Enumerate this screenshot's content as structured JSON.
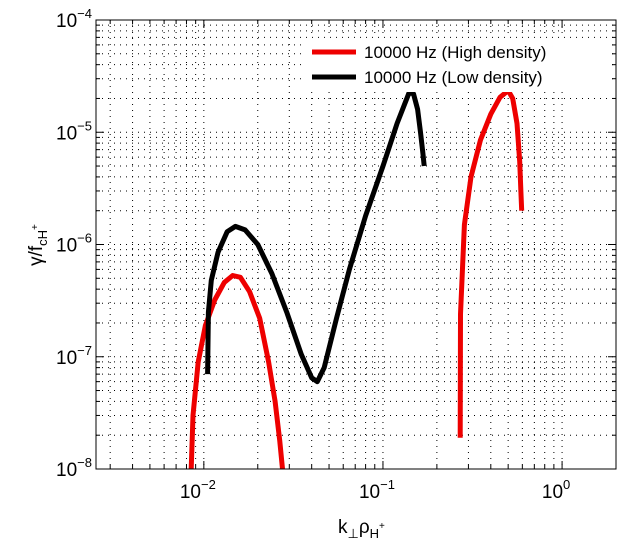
{
  "chart_data": {
    "type": "line",
    "title": "",
    "xscale": "log",
    "yscale": "log",
    "xlim": [
      0.0025,
      2
    ],
    "ylim": [
      1e-08,
      0.0001
    ],
    "grid": true,
    "legend_position": "top-right",
    "xlabel": {
      "main": "k",
      "sub1": "⊥",
      "mid": "ρ",
      "sub2": "H",
      "sup": "+"
    },
    "ylabel": {
      "main": "γ/f",
      "sub": "cH",
      "sup": "+"
    },
    "xticks": [
      {
        "value": 0.01,
        "base": "10",
        "exp": "−2"
      },
      {
        "value": 0.1,
        "base": "10",
        "exp": "−1"
      },
      {
        "value": 1,
        "base": "10",
        "exp": "0"
      }
    ],
    "yticks": [
      {
        "value": 1e-08,
        "base": "10",
        "exp": "−8"
      },
      {
        "value": 1e-07,
        "base": "10",
        "exp": "−7"
      },
      {
        "value": 1e-06,
        "base": "10",
        "exp": "−6"
      },
      {
        "value": 1e-05,
        "base": "10",
        "exp": "−5"
      },
      {
        "value": 0.0001,
        "base": "10",
        "exp": "−4"
      }
    ],
    "series": [
      {
        "name": "10000 Hz (High density)",
        "color": "#ee0000",
        "segments": [
          [
            [
              0.0085,
              1e-08
            ],
            [
              0.0087,
              3e-08
            ],
            [
              0.0093,
              9e-08
            ],
            [
              0.0102,
              1.9e-07
            ],
            [
              0.0115,
              3.2e-07
            ],
            [
              0.013,
              4.6e-07
            ],
            [
              0.0145,
              5.3e-07
            ],
            [
              0.016,
              5.1e-07
            ],
            [
              0.018,
              3.8e-07
            ],
            [
              0.0205,
              2.2e-07
            ],
            [
              0.023,
              9e-08
            ],
            [
              0.025,
              4e-08
            ],
            [
              0.0265,
              1.8e-08
            ],
            [
              0.0275,
              1e-08
            ]
          ],
          [
            [
              0.27,
              1.9e-08
            ],
            [
              0.271,
              2.4e-07
            ],
            [
              0.285,
              1.5e-06
            ],
            [
              0.31,
              4e-06
            ],
            [
              0.35,
              8.5e-06
            ],
            [
              0.4,
              1.45e-05
            ],
            [
              0.45,
              2.05e-05
            ],
            [
              0.5,
              2.35e-05
            ],
            [
              0.53,
              2e-05
            ],
            [
              0.56,
              1.2e-05
            ],
            [
              0.58,
              5.5e-06
            ],
            [
              0.59,
              2.8e-06
            ],
            [
              0.595,
              2e-06
            ]
          ]
        ]
      },
      {
        "name": "10000 Hz (Low density)",
        "color": "#000000",
        "segments": [
          [
            [
              0.0105,
              7e-08
            ],
            [
              0.0106,
              2.5e-07
            ],
            [
              0.011,
              4.8e-07
            ],
            [
              0.012,
              8.5e-07
            ],
            [
              0.0135,
              1.3e-06
            ],
            [
              0.015,
              1.45e-06
            ],
            [
              0.017,
              1.35e-06
            ],
            [
              0.02,
              1e-06
            ],
            [
              0.024,
              5.5e-07
            ],
            [
              0.029,
              2.5e-07
            ],
            [
              0.035,
              1.05e-07
            ],
            [
              0.04,
              6.5e-08
            ],
            [
              0.043,
              6e-08
            ],
            [
              0.047,
              8e-08
            ],
            [
              0.055,
              2.2e-07
            ],
            [
              0.065,
              6e-07
            ],
            [
              0.08,
              1.8e-06
            ],
            [
              0.1,
              5e-06
            ],
            [
              0.12,
              1.2e-05
            ],
            [
              0.14,
              2.25e-05
            ],
            [
              0.148,
              2.2e-05
            ],
            [
              0.156,
              1.6e-05
            ],
            [
              0.162,
              1e-05
            ],
            [
              0.167,
              6.5e-06
            ],
            [
              0.17,
              5e-06
            ]
          ]
        ]
      }
    ]
  }
}
